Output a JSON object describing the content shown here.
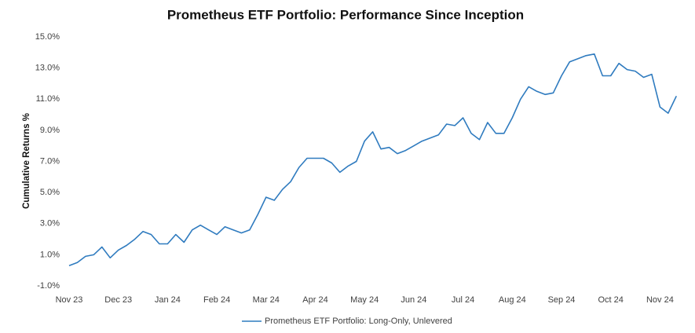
{
  "chart_data": {
    "type": "line",
    "title": "Prometheus ETF Portfolio: Performance Since Inception",
    "y_label": "Cumulative Returns %",
    "categories": [
      "Nov 23",
      null,
      null,
      null,
      null,
      null,
      "Dec 23",
      null,
      null,
      null,
      null,
      null,
      "Jan 24",
      null,
      null,
      null,
      null,
      null,
      "Feb 24",
      null,
      null,
      null,
      null,
      null,
      "Mar 24",
      null,
      null,
      null,
      null,
      null,
      "Apr 24",
      null,
      null,
      null,
      null,
      null,
      "May 24",
      null,
      null,
      null,
      null,
      null,
      "Jun 24",
      null,
      null,
      null,
      null,
      null,
      "Jul 24",
      null,
      null,
      null,
      null,
      null,
      "Aug 24",
      null,
      null,
      null,
      null,
      null,
      "Sep 24",
      null,
      null,
      null,
      null,
      null,
      "Oct 24",
      null,
      null,
      null,
      null,
      null,
      "Nov 24",
      null,
      null
    ],
    "series": [
      {
        "name": "Prometheus ETF Portfolio: Long-Only, Unlevered",
        "color": "#2f7bbf",
        "values": [
          0.3,
          0.5,
          0.9,
          1.0,
          1.5,
          0.8,
          1.3,
          1.6,
          2.0,
          2.5,
          2.3,
          1.7,
          1.7,
          2.3,
          1.8,
          2.6,
          2.9,
          2.6,
          2.3,
          2.8,
          2.6,
          2.4,
          2.6,
          3.6,
          4.7,
          4.5,
          5.2,
          5.7,
          6.6,
          7.2,
          7.2,
          7.2,
          6.9,
          6.3,
          6.7,
          7.0,
          8.3,
          8.9,
          7.8,
          7.9,
          7.5,
          7.7,
          8.0,
          8.3,
          8.5,
          8.7,
          9.4,
          9.3,
          9.8,
          8.8,
          8.4,
          9.5,
          8.8,
          8.8,
          9.8,
          11.0,
          11.8,
          11.5,
          11.3,
          11.4,
          12.5,
          13.4,
          13.6,
          13.8,
          13.9,
          12.5,
          12.5,
          13.3,
          12.9,
          12.8,
          12.4,
          12.6,
          10.5,
          10.1,
          11.2
        ]
      }
    ],
    "ylim": [
      -1.5,
      15.5
    ],
    "yticks": [
      {
        "value": -1,
        "label": "-1.0%"
      },
      {
        "value": 1,
        "label": "1.0%"
      },
      {
        "value": 3,
        "label": "3.0%"
      },
      {
        "value": 5,
        "label": "5.0%"
      },
      {
        "value": 7,
        "label": "7.0%"
      },
      {
        "value": 9,
        "label": "9.0%"
      },
      {
        "value": 11,
        "label": "11.0%"
      },
      {
        "value": 13,
        "label": "13.0%"
      },
      {
        "value": 15,
        "label": "15.0%"
      }
    ],
    "grid": false,
    "legend": "bottom"
  }
}
